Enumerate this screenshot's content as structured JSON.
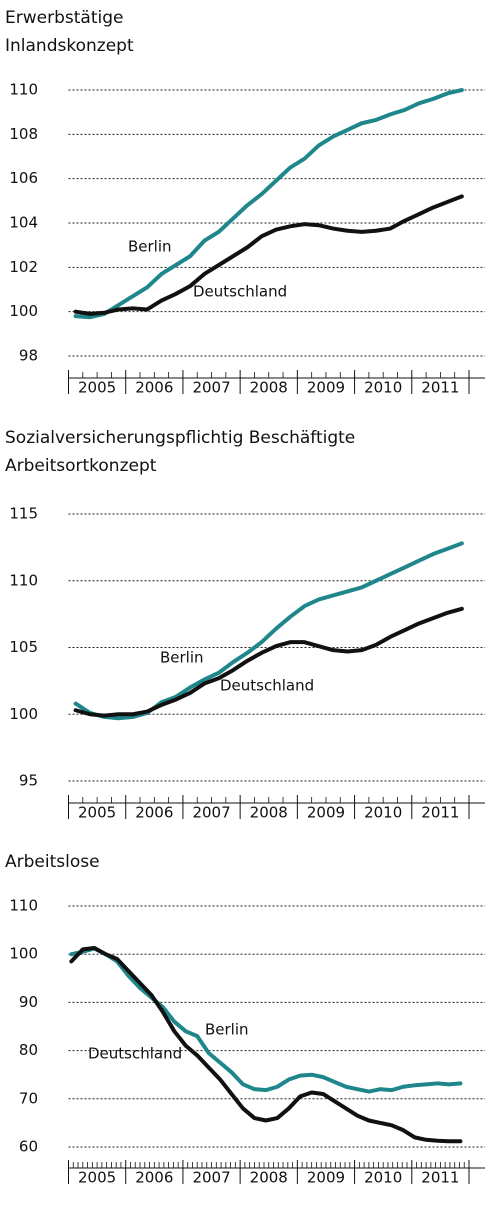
{
  "chart_data": [
    {
      "type": "line",
      "title": "Erwerbstätige",
      "subtitle": "Inlandskonzept",
      "categories": [
        "2005",
        "2006",
        "2007",
        "2008",
        "2009",
        "2010",
        "2011"
      ],
      "xlim": [
        2005,
        2012
      ],
      "xticks": [
        2005,
        2006,
        2007,
        2008,
        2009,
        2010,
        2011,
        2012
      ],
      "ylim": [
        98,
        110
      ],
      "yticks": [
        98,
        100,
        102,
        104,
        106,
        108,
        110
      ],
      "grid": true,
      "x": [
        2005.125,
        2005.375,
        2005.625,
        2005.875,
        2006.125,
        2006.375,
        2006.625,
        2006.875,
        2007.125,
        2007.375,
        2007.625,
        2007.875,
        2008.125,
        2008.375,
        2008.625,
        2008.875,
        2009.125,
        2009.375,
        2009.625,
        2009.875,
        2010.125,
        2010.375,
        2010.625,
        2010.875,
        2011.125,
        2011.375,
        2011.625,
        2011.875
      ],
      "series": [
        {
          "name": "Berlin",
          "color": "#1f878b",
          "values": [
            99.8,
            99.75,
            99.9,
            100.3,
            100.7,
            101.1,
            101.7,
            102.1,
            102.5,
            103.2,
            103.6,
            104.2,
            104.8,
            105.3,
            105.9,
            106.5,
            106.9,
            107.5,
            107.9,
            108.2,
            108.5,
            108.65,
            108.9,
            109.1,
            109.4,
            109.6,
            109.85,
            110.0
          ]
        },
        {
          "name": "Deutschland",
          "color": "#111111",
          "values": [
            100,
            99.9,
            99.95,
            100.1,
            100.15,
            100.1,
            100.5,
            100.8,
            101.15,
            101.7,
            102.1,
            102.5,
            102.9,
            103.4,
            103.7,
            103.85,
            103.95,
            103.9,
            103.75,
            103.65,
            103.6,
            103.65,
            103.75,
            104.1,
            104.4,
            104.7,
            104.95,
            105.2
          ]
        }
      ]
    },
    {
      "type": "line",
      "title": "Sozialversicherungspflichtig Beschäftigte",
      "subtitle": "Arbeitsortkonzept",
      "categories": [
        "2005",
        "2006",
        "2007",
        "2008",
        "2009",
        "2010",
        "2011"
      ],
      "xlim": [
        2005,
        2012
      ],
      "xticks": [
        2005,
        2006,
        2007,
        2008,
        2009,
        2010,
        2011,
        2012
      ],
      "ylim": [
        95,
        115
      ],
      "yticks": [
        95,
        100,
        105,
        110,
        115
      ],
      "grid": true,
      "x": [
        2005.125,
        2005.375,
        2005.625,
        2005.875,
        2006.125,
        2006.375,
        2006.625,
        2006.875,
        2007.125,
        2007.375,
        2007.625,
        2007.875,
        2008.125,
        2008.375,
        2008.625,
        2008.875,
        2009.125,
        2009.375,
        2009.625,
        2009.875,
        2010.125,
        2010.375,
        2010.625,
        2010.875,
        2011.125,
        2011.375,
        2011.625,
        2011.875
      ],
      "series": [
        {
          "name": "Berlin",
          "color": "#1f878b",
          "values": [
            100.8,
            100.1,
            99.8,
            99.7,
            99.8,
            100.1,
            100.9,
            101.3,
            102,
            102.6,
            103.1,
            103.9,
            104.6,
            105.4,
            106.4,
            107.3,
            108.1,
            108.6,
            108.9,
            109.2,
            109.5,
            110,
            110.5,
            111,
            111.5,
            112,
            112.4,
            112.8
          ]
        },
        {
          "name": "Deutschland",
          "color": "#111111",
          "values": [
            100.3,
            100,
            99.9,
            100,
            100,
            100.2,
            100.7,
            101.1,
            101.6,
            102.3,
            102.7,
            103.3,
            104,
            104.6,
            105.1,
            105.4,
            105.4,
            105.1,
            104.8,
            104.7,
            104.8,
            105.2,
            105.8,
            106.3,
            106.8,
            107.2,
            107.6,
            107.9
          ]
        }
      ]
    },
    {
      "type": "line",
      "title": "Arbeitslose",
      "categories": [
        "2005",
        "2006",
        "2007",
        "2008",
        "2009",
        "2010",
        "2011"
      ],
      "xlim": [
        2005,
        2012
      ],
      "xticks": [
        2005,
        2006,
        2007,
        2008,
        2009,
        2010,
        2011,
        2012
      ],
      "ylim": [
        60,
        110
      ],
      "yticks": [
        60,
        70,
        80,
        90,
        100,
        110
      ],
      "grid": true,
      "x": [
        2005.05,
        2005.25,
        2005.45,
        2005.65,
        2005.85,
        2006.05,
        2006.25,
        2006.45,
        2006.65,
        2006.85,
        2007.05,
        2007.25,
        2007.45,
        2007.65,
        2007.85,
        2008.05,
        2008.25,
        2008.45,
        2008.65,
        2008.85,
        2009.05,
        2009.25,
        2009.45,
        2009.65,
        2009.85,
        2010.05,
        2010.25,
        2010.45,
        2010.65,
        2010.85,
        2011.05,
        2011.25,
        2011.45,
        2011.65,
        2011.85
      ],
      "series": [
        {
          "name": "Berlin",
          "color": "#1f878b",
          "values": [
            100,
            100.5,
            101.2,
            100,
            98.5,
            95.5,
            93,
            91,
            89,
            86,
            84,
            83,
            79.5,
            77.5,
            75.5,
            73,
            72,
            71.8,
            72.5,
            74,
            74.8,
            75,
            74.5,
            73.5,
            72.5,
            72,
            71.5,
            72,
            71.8,
            72.5,
            72.8,
            73,
            73.2,
            73,
            73.2
          ]
        },
        {
          "name": "Deutschland",
          "color": "#111111",
          "values": [
            98.5,
            101,
            101.3,
            100,
            99,
            96.5,
            94,
            91.5,
            88,
            84,
            81,
            79,
            76.5,
            74,
            71,
            68,
            66,
            65.5,
            66,
            68,
            70.5,
            71.3,
            71,
            69.5,
            68,
            66.5,
            65.5,
            65,
            64.5,
            63.5,
            62,
            61.5,
            61.3,
            61.2,
            61.2
          ]
        }
      ]
    }
  ]
}
